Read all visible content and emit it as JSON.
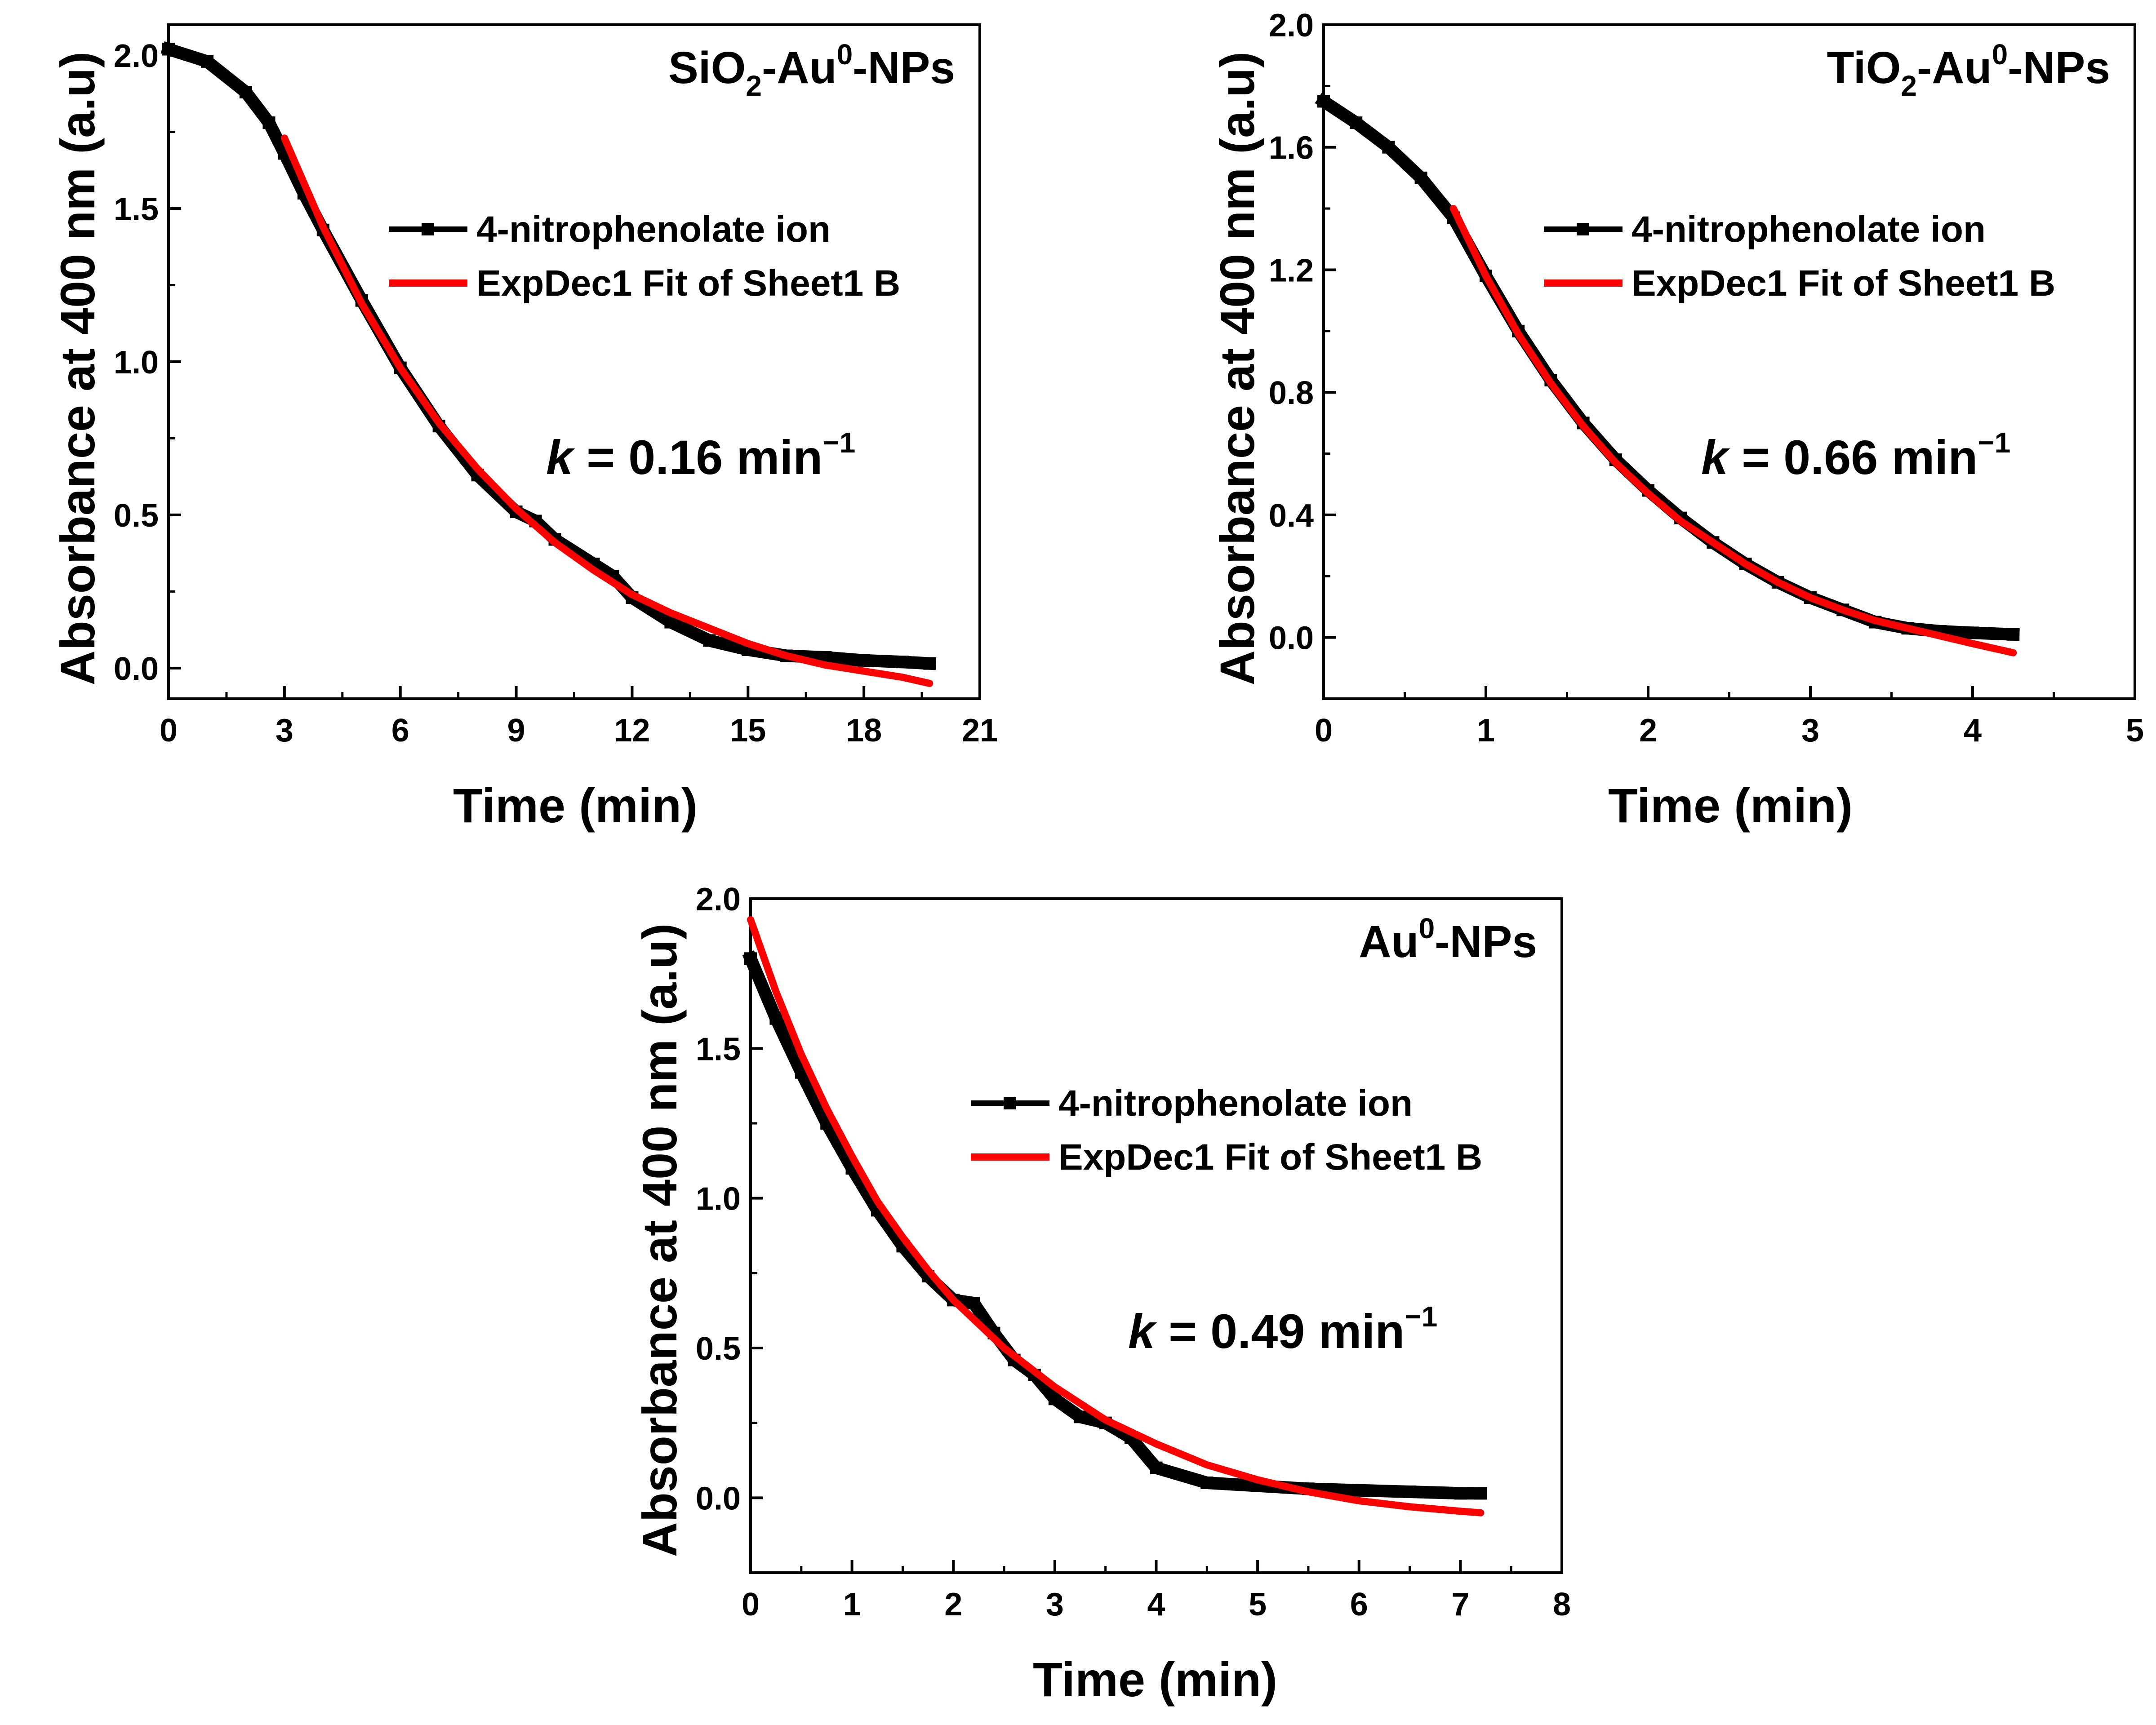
{
  "figure": {
    "description_count": 3
  },
  "chart_data": [
    {
      "type": "line",
      "id": "sio2",
      "title": {
        "base": "SiO",
        "sub": "2",
        "mid": "-Au",
        "sup": "0",
        "end": "-NPs"
      },
      "xlabel": "Time (min)",
      "ylabel": "Absorbance at 400 nm (a.u)",
      "xlim": [
        0,
        21
      ],
      "ylim": [
        -0.1,
        2.1
      ],
      "xticks": [
        0,
        3,
        6,
        9,
        12,
        15,
        18,
        21
      ],
      "yticks": [
        0.0,
        0.5,
        1.0,
        1.5,
        2.0
      ],
      "xtick_labels": [
        "0",
        "3",
        "6",
        "9",
        "12",
        "15",
        "18",
        "21"
      ],
      "ytick_labels": [
        "0.0",
        "0.5",
        "1.0",
        "1.5",
        "2.0"
      ],
      "k_text": {
        "symbol": "k",
        "value": " = 0.16 min",
        "sup": "−1"
      },
      "legend": [
        "4-nitrophenolate ion",
        "ExpDec1 Fit of Sheet1 B"
      ],
      "series": [
        {
          "name": "4-nitrophenolate ion",
          "color": "#000000",
          "x": [
            0,
            1,
            2,
            2.6,
            3,
            3.5,
            4,
            5,
            6,
            7,
            8,
            9,
            9.5,
            10,
            11,
            11.5,
            12,
            13,
            14,
            15,
            16,
            17,
            18,
            19,
            19.7
          ],
          "y": [
            2.02,
            1.98,
            1.88,
            1.78,
            1.68,
            1.55,
            1.43,
            1.2,
            0.98,
            0.79,
            0.63,
            0.51,
            0.48,
            0.42,
            0.34,
            0.3,
            0.23,
            0.15,
            0.09,
            0.06,
            0.04,
            0.035,
            0.025,
            0.02,
            0.015
          ]
        },
        {
          "name": "ExpDec1 Fit of Sheet1 B",
          "color": "#ff0000",
          "x": [
            3,
            4,
            5,
            6,
            7,
            8,
            9,
            10,
            11,
            12,
            13,
            14,
            15,
            16,
            17,
            18,
            19,
            19.7
          ],
          "y": [
            1.73,
            1.44,
            1.19,
            0.98,
            0.8,
            0.65,
            0.52,
            0.41,
            0.32,
            0.24,
            0.18,
            0.13,
            0.08,
            0.04,
            0.01,
            -0.01,
            -0.03,
            -0.05
          ]
        }
      ]
    },
    {
      "type": "line",
      "id": "tio2",
      "title": {
        "base": "TiO",
        "sub": "2",
        "mid": "-Au",
        "sup": "0",
        "end": "-NPs"
      },
      "xlabel": "Time (min)",
      "ylabel": "Absorbance at 400 nm (a.u)",
      "xlim": [
        0,
        5
      ],
      "ylim": [
        -0.2,
        2.0
      ],
      "xticks": [
        0,
        1,
        2,
        3,
        4,
        5
      ],
      "yticks": [
        0.0,
        0.4,
        0.8,
        1.2,
        1.6,
        2.0
      ],
      "xtick_labels": [
        "0",
        "1",
        "2",
        "3",
        "4",
        "5"
      ],
      "ytick_labels": [
        "0.0",
        "0.4",
        "0.8",
        "1.2",
        "1.6",
        "2.0"
      ],
      "k_text": {
        "symbol": "k",
        "value": " = 0.66 min",
        "sup": "−1"
      },
      "legend": [
        "4-nitrophenolate ion",
        "ExpDec1 Fit of Sheet1 B"
      ],
      "series": [
        {
          "name": "4-nitrophenolate ion",
          "color": "#000000",
          "x": [
            0,
            0.2,
            0.4,
            0.6,
            0.8,
            1.0,
            1.2,
            1.4,
            1.6,
            1.8,
            2.0,
            2.2,
            2.4,
            2.6,
            2.8,
            3.0,
            3.2,
            3.4,
            3.6,
            3.8,
            4.0,
            4.25
          ],
          "y": [
            1.75,
            1.68,
            1.6,
            1.5,
            1.37,
            1.18,
            1.0,
            0.84,
            0.7,
            0.58,
            0.48,
            0.39,
            0.31,
            0.24,
            0.18,
            0.13,
            0.09,
            0.05,
            0.03,
            0.02,
            0.015,
            0.01
          ]
        },
        {
          "name": "ExpDec1 Fit of Sheet1 B",
          "color": "#ff0000",
          "x": [
            0.8,
            1.0,
            1.2,
            1.4,
            1.6,
            1.8,
            2.0,
            2.2,
            2.4,
            2.6,
            2.8,
            3.0,
            3.2,
            3.4,
            3.6,
            3.8,
            4.0,
            4.25
          ],
          "y": [
            1.4,
            1.18,
            0.99,
            0.83,
            0.69,
            0.57,
            0.47,
            0.38,
            0.31,
            0.24,
            0.18,
            0.13,
            0.09,
            0.055,
            0.03,
            0.005,
            -0.02,
            -0.05
          ]
        }
      ]
    },
    {
      "type": "line",
      "id": "au",
      "title": {
        "base": "Au",
        "sub": "",
        "mid": "",
        "sup": "0",
        "end": "-NPs"
      },
      "xlabel": "Time (min)",
      "ylabel": "Absorbance at 400 nm (a.u)",
      "xlim": [
        0,
        8
      ],
      "ylim": [
        -0.25,
        2.0
      ],
      "xticks": [
        0,
        1,
        2,
        3,
        4,
        5,
        6,
        7,
        8
      ],
      "yticks": [
        0.0,
        0.5,
        1.0,
        1.5,
        2.0
      ],
      "xtick_labels": [
        "0",
        "1",
        "2",
        "3",
        "4",
        "5",
        "6",
        "7",
        "8"
      ],
      "ytick_labels": [
        "0.0",
        "0.5",
        "1.0",
        "1.5",
        "2.0"
      ],
      "k_text": {
        "symbol": "k",
        "value": " = 0.49 min",
        "sup": "−1"
      },
      "legend": [
        "4-nitrophenolate ion",
        "ExpDec1 Fit of Sheet1 B"
      ],
      "series": [
        {
          "name": "4-nitrophenolate ion",
          "color": "#000000",
          "x": [
            0,
            0.25,
            0.5,
            0.75,
            1.0,
            1.25,
            1.5,
            1.75,
            2.0,
            2.2,
            2.4,
            2.6,
            2.8,
            3.0,
            3.25,
            3.5,
            3.75,
            4.0,
            4.5,
            5.0,
            5.5,
            6.0,
            6.5,
            7.0,
            7.2
          ],
          "y": [
            1.8,
            1.6,
            1.42,
            1.25,
            1.1,
            0.96,
            0.84,
            0.74,
            0.66,
            0.65,
            0.55,
            0.46,
            0.41,
            0.33,
            0.27,
            0.25,
            0.2,
            0.1,
            0.05,
            0.04,
            0.03,
            0.025,
            0.02,
            0.015,
            0.015
          ]
        },
        {
          "name": "ExpDec1 Fit of Sheet1 B",
          "color": "#ff0000",
          "x": [
            0,
            0.25,
            0.5,
            0.75,
            1.0,
            1.25,
            1.5,
            1.75,
            2.0,
            2.5,
            3.0,
            3.5,
            4.0,
            4.5,
            5.0,
            5.5,
            6.0,
            6.5,
            7.0,
            7.2
          ],
          "y": [
            1.93,
            1.69,
            1.48,
            1.3,
            1.14,
            0.99,
            0.87,
            0.76,
            0.66,
            0.5,
            0.37,
            0.26,
            0.18,
            0.11,
            0.06,
            0.02,
            -0.01,
            -0.03,
            -0.045,
            -0.05
          ]
        }
      ]
    }
  ]
}
